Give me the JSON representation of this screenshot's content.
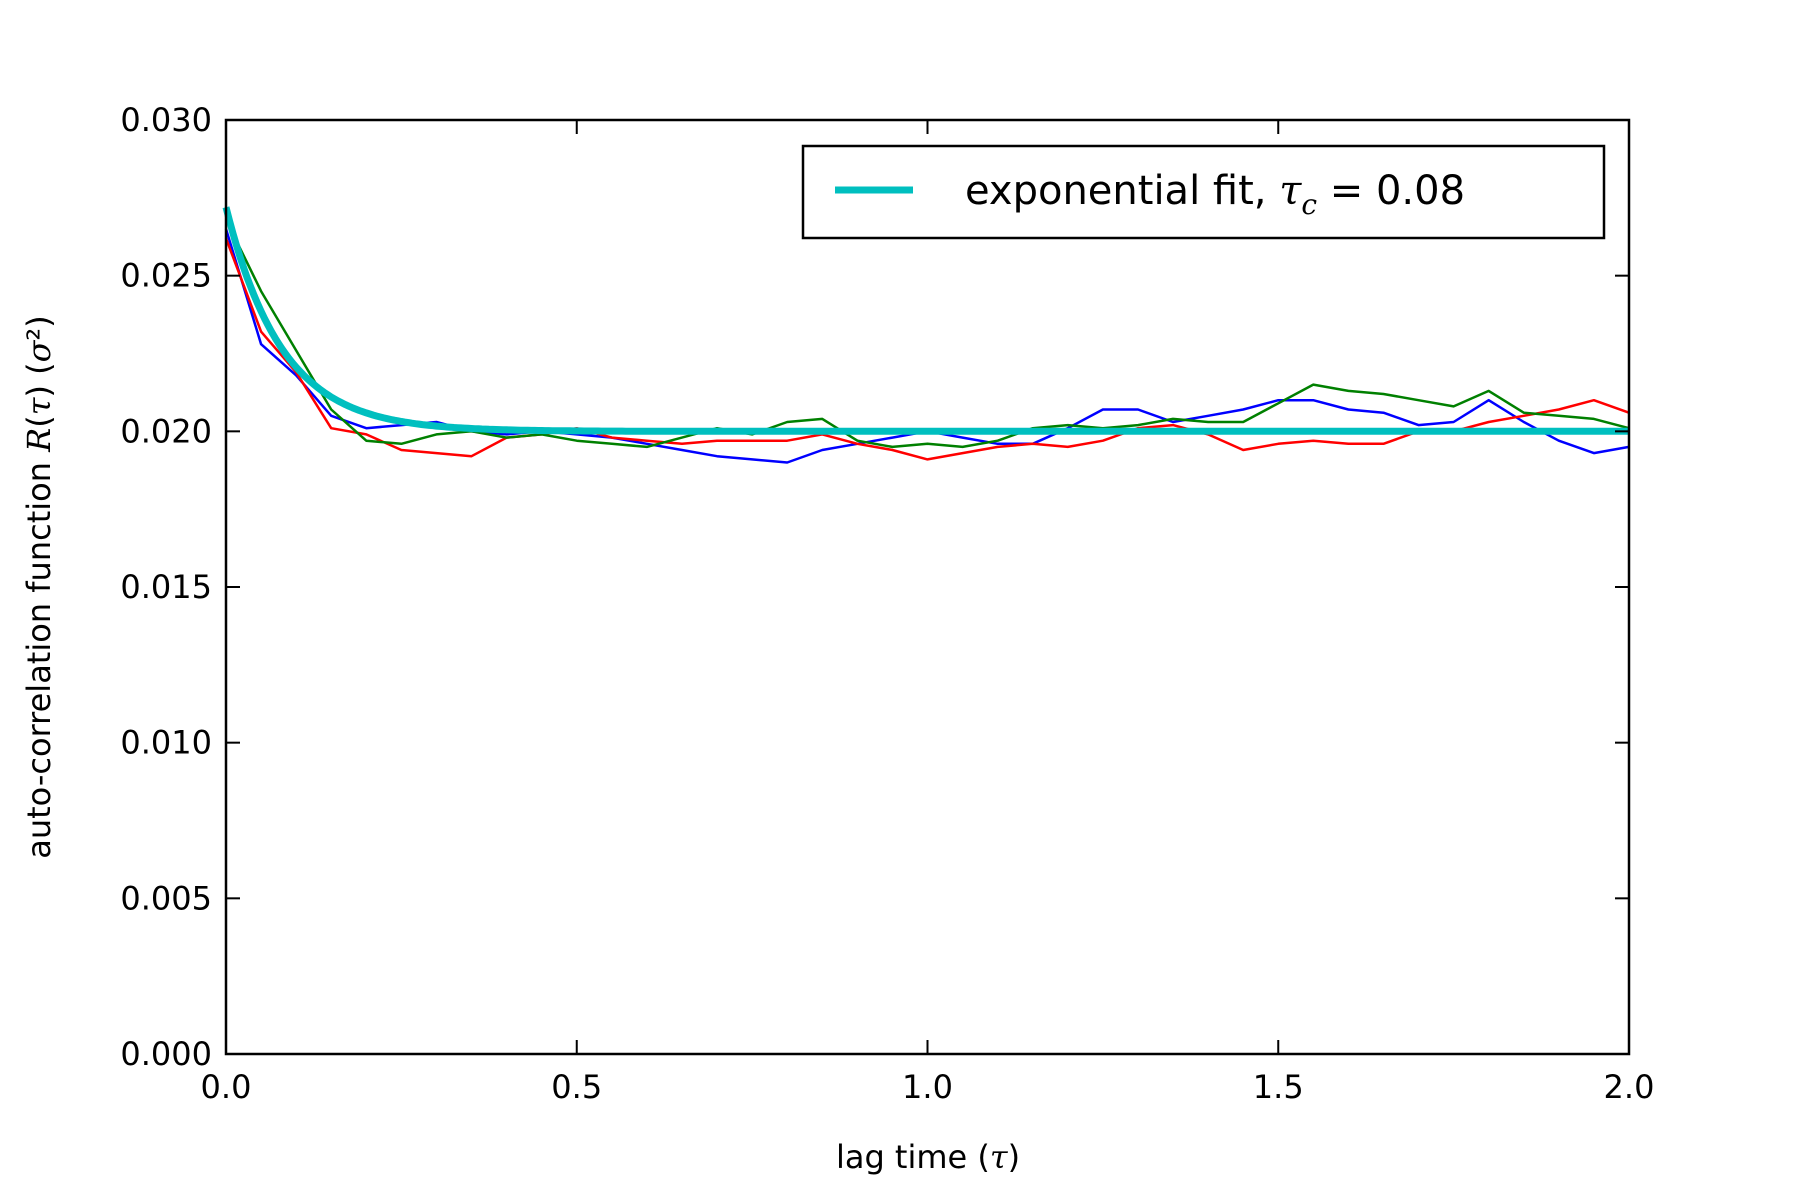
{
  "chart_data": {
    "type": "line",
    "xlabel": "lag time (τ)",
    "ylabel": "auto-correlation function R(τ) (σ²)",
    "xlim": [
      0.0,
      2.0
    ],
    "ylim": [
      0.0,
      0.03
    ],
    "xticks": [
      "0.0",
      "0.5",
      "1.0",
      "1.5",
      "2.0"
    ],
    "yticks": [
      "0.000",
      "0.005",
      "0.010",
      "0.015",
      "0.020",
      "0.025",
      "0.030"
    ],
    "grid": false,
    "legend_position": "top-right",
    "legend": {
      "label_prefix": "exponential fit, ",
      "symbol": "τ",
      "subscript": "c",
      "label_suffix": " = 0.08"
    },
    "fit": {
      "model": "exponential",
      "tau_c": 0.08,
      "initial": 0.0272,
      "asymptote": 0.02,
      "color": "#00bfbf"
    },
    "series": [
      {
        "color": "#0000ff",
        "x": [
          0.0,
          0.05,
          0.1,
          0.15,
          0.2,
          0.25,
          0.3,
          0.35,
          0.4,
          0.45,
          0.5,
          0.55,
          0.6,
          0.65,
          0.7,
          0.75,
          0.8,
          0.85,
          0.9,
          0.95,
          1.0,
          1.05,
          1.1,
          1.15,
          1.2,
          1.25,
          1.3,
          1.35,
          1.4,
          1.45,
          1.5,
          1.55,
          1.6,
          1.65,
          1.7,
          1.75,
          1.8,
          1.85,
          1.9,
          1.95,
          2.0
        ],
        "y": [
          0.0265,
          0.0228,
          0.0218,
          0.0205,
          0.0201,
          0.0202,
          0.0203,
          0.02,
          0.0199,
          0.02,
          0.0199,
          0.0198,
          0.0196,
          0.0194,
          0.0192,
          0.0191,
          0.019,
          0.0194,
          0.0196,
          0.0198,
          0.02,
          0.0198,
          0.0196,
          0.0196,
          0.0201,
          0.0207,
          0.0207,
          0.0203,
          0.0205,
          0.0207,
          0.021,
          0.021,
          0.0207,
          0.0206,
          0.0202,
          0.0203,
          0.021,
          0.0203,
          0.0197,
          0.0193,
          0.0195
        ]
      },
      {
        "color": "#ff0000",
        "x": [
          0.0,
          0.05,
          0.1,
          0.15,
          0.2,
          0.25,
          0.3,
          0.35,
          0.4,
          0.45,
          0.5,
          0.55,
          0.6,
          0.65,
          0.7,
          0.75,
          0.8,
          0.85,
          0.9,
          0.95,
          1.0,
          1.05,
          1.1,
          1.15,
          1.2,
          1.25,
          1.3,
          1.35,
          1.4,
          1.45,
          1.5,
          1.55,
          1.6,
          1.65,
          1.7,
          1.75,
          1.8,
          1.85,
          1.9,
          1.95,
          2.0
        ],
        "y": [
          0.0262,
          0.0232,
          0.0219,
          0.0201,
          0.0199,
          0.0194,
          0.0193,
          0.0192,
          0.0198,
          0.0199,
          0.0201,
          0.0198,
          0.0197,
          0.0196,
          0.0197,
          0.0197,
          0.0197,
          0.0199,
          0.0196,
          0.0194,
          0.0191,
          0.0193,
          0.0195,
          0.0196,
          0.0195,
          0.0197,
          0.0201,
          0.0202,
          0.0199,
          0.0194,
          0.0196,
          0.0197,
          0.0196,
          0.0196,
          0.02,
          0.02,
          0.0203,
          0.0205,
          0.0207,
          0.021,
          0.0206
        ]
      },
      {
        "color": "#008000",
        "x": [
          0.0,
          0.05,
          0.1,
          0.15,
          0.2,
          0.25,
          0.3,
          0.35,
          0.4,
          0.45,
          0.5,
          0.55,
          0.6,
          0.65,
          0.7,
          0.75,
          0.8,
          0.85,
          0.9,
          0.95,
          1.0,
          1.05,
          1.1,
          1.15,
          1.2,
          1.25,
          1.3,
          1.35,
          1.4,
          1.45,
          1.5,
          1.55,
          1.6,
          1.65,
          1.7,
          1.75,
          1.8,
          1.85,
          1.9,
          1.95,
          2.0
        ],
        "y": [
          0.0268,
          0.0245,
          0.0226,
          0.0207,
          0.0197,
          0.0196,
          0.0199,
          0.02,
          0.0198,
          0.0199,
          0.0197,
          0.0196,
          0.0195,
          0.0198,
          0.0201,
          0.0199,
          0.0203,
          0.0204,
          0.0197,
          0.0195,
          0.0196,
          0.0195,
          0.0197,
          0.0201,
          0.0202,
          0.0201,
          0.0202,
          0.0204,
          0.0203,
          0.0203,
          0.0209,
          0.0215,
          0.0213,
          0.0212,
          0.021,
          0.0208,
          0.0213,
          0.0206,
          0.0205,
          0.0204,
          0.0201
        ]
      }
    ]
  }
}
